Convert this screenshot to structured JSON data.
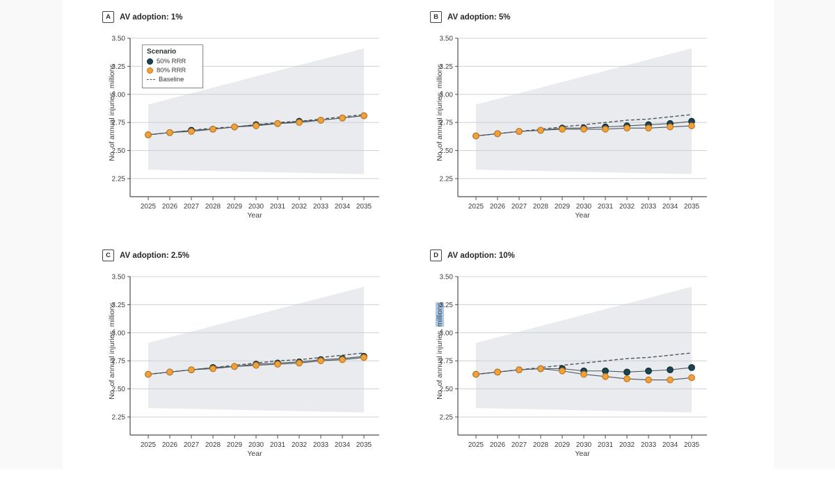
{
  "page": {
    "background": "#ffffff"
  },
  "axis": {
    "xlabel": "Year",
    "ylabel_prefix": "No. of annual injuries, ",
    "ylabel_highlight_word": "millions"
  },
  "legend": {
    "title": "Scenario",
    "items": [
      {
        "label": "50% RRR",
        "marker": "dot-dark"
      },
      {
        "label": "80% RRR",
        "marker": "dot-orange"
      },
      {
        "label": "Baseline",
        "marker": "dashed-line"
      }
    ],
    "position": "top-left of panel A"
  },
  "colors": {
    "rrr50": "#1c4551",
    "rrr50_stroke": "#0e2a33",
    "rrr80": "#f0a13c",
    "rrr80_stroke": "#bf7a22",
    "baseline": "#4c565c",
    "series_line": "#4b565c",
    "band": "#e9ebee",
    "grid": "#ccd1d5",
    "axis": "#4a4d50",
    "text": "#3a3d40",
    "highlight": "#a9c9ea"
  },
  "chart_data": [
    {
      "type": "line",
      "panel_letter": "A",
      "title": "AV adoption: 1%",
      "x": [
        2025,
        2026,
        2027,
        2028,
        2029,
        2030,
        2031,
        2032,
        2033,
        2034,
        2035
      ],
      "y_ticks": [
        "3.50",
        "3.25",
        "3.00",
        "2.75",
        "2.50",
        "2.25"
      ],
      "ylim": [
        2.25,
        3.5
      ],
      "grid": true,
      "highlight_millions": false,
      "band": {
        "top": [
          2.91,
          3.41
        ],
        "bottom": [
          2.33,
          2.29
        ]
      },
      "series": [
        {
          "name": "Baseline",
          "style": "dashed",
          "values": [
            2.64,
            2.66,
            2.68,
            2.7,
            2.71,
            2.73,
            2.75,
            2.76,
            2.78,
            2.8,
            2.82
          ]
        },
        {
          "name": "50% RRR",
          "style": "dot-dark",
          "values": [
            2.64,
            2.66,
            2.68,
            2.69,
            2.71,
            2.73,
            2.74,
            2.76,
            2.77,
            2.79,
            2.81
          ]
        },
        {
          "name": "80% RRR",
          "style": "dot-orange",
          "values": [
            2.64,
            2.66,
            2.67,
            2.69,
            2.71,
            2.72,
            2.74,
            2.75,
            2.77,
            2.79,
            2.81
          ]
        }
      ]
    },
    {
      "type": "line",
      "panel_letter": "B",
      "title": "AV adoption: 5%",
      "x": [
        2025,
        2026,
        2027,
        2028,
        2029,
        2030,
        2031,
        2032,
        2033,
        2034,
        2035
      ],
      "y_ticks": [
        "3.50",
        "3.25",
        "3.00",
        "2.75",
        "2.50",
        "2.25"
      ],
      "ylim": [
        2.25,
        3.5
      ],
      "grid": true,
      "highlight_millions": false,
      "band": {
        "top": [
          2.91,
          3.41
        ],
        "bottom": [
          2.33,
          2.29
        ]
      },
      "series": [
        {
          "name": "Baseline",
          "style": "dashed",
          "values": [
            2.63,
            2.65,
            2.67,
            2.69,
            2.71,
            2.73,
            2.75,
            2.77,
            2.78,
            2.8,
            2.82
          ]
        },
        {
          "name": "50% RRR",
          "style": "dot-dark",
          "values": [
            2.63,
            2.65,
            2.67,
            2.68,
            2.7,
            2.7,
            2.71,
            2.72,
            2.73,
            2.74,
            2.76
          ]
        },
        {
          "name": "80% RRR",
          "style": "dot-orange",
          "values": [
            2.63,
            2.65,
            2.67,
            2.68,
            2.69,
            2.69,
            2.69,
            2.7,
            2.7,
            2.71,
            2.72
          ]
        }
      ]
    },
    {
      "type": "line",
      "panel_letter": "C",
      "title": "AV adoption: 2.5%",
      "x": [
        2025,
        2026,
        2027,
        2028,
        2029,
        2030,
        2031,
        2032,
        2033,
        2034,
        2035
      ],
      "y_ticks": [
        "3.50",
        "3.25",
        "3.00",
        "2.75",
        "2.50",
        "2.25"
      ],
      "ylim": [
        2.25,
        3.5
      ],
      "grid": true,
      "highlight_millions": false,
      "band": {
        "top": [
          2.91,
          3.41
        ],
        "bottom": [
          2.33,
          2.29
        ]
      },
      "series": [
        {
          "name": "Baseline",
          "style": "dashed",
          "values": [
            2.63,
            2.65,
            2.67,
            2.69,
            2.71,
            2.73,
            2.75,
            2.76,
            2.78,
            2.8,
            2.82
          ]
        },
        {
          "name": "50% RRR",
          "style": "dot-dark",
          "values": [
            2.63,
            2.65,
            2.67,
            2.69,
            2.7,
            2.72,
            2.73,
            2.74,
            2.76,
            2.77,
            2.79
          ]
        },
        {
          "name": "80% RRR",
          "style": "dot-orange",
          "values": [
            2.63,
            2.65,
            2.67,
            2.68,
            2.7,
            2.71,
            2.72,
            2.73,
            2.75,
            2.76,
            2.78
          ]
        }
      ]
    },
    {
      "type": "line",
      "panel_letter": "D",
      "title": "AV adoption: 10%",
      "x": [
        2025,
        2026,
        2027,
        2028,
        2029,
        2030,
        2031,
        2032,
        2033,
        2034,
        2035
      ],
      "y_ticks": [
        "3.50",
        "3.25",
        "3.00",
        "2.75",
        "2.50",
        "2.25"
      ],
      "ylim": [
        2.25,
        3.5
      ],
      "grid": true,
      "highlight_millions": true,
      "band": {
        "top": [
          2.91,
          3.41
        ],
        "bottom": [
          2.33,
          2.29
        ]
      },
      "series": [
        {
          "name": "Baseline",
          "style": "dashed",
          "values": [
            2.63,
            2.65,
            2.67,
            2.69,
            2.71,
            2.73,
            2.75,
            2.77,
            2.78,
            2.8,
            2.82
          ]
        },
        {
          "name": "50% RRR",
          "style": "dot-dark",
          "values": [
            2.63,
            2.65,
            2.67,
            2.68,
            2.68,
            2.66,
            2.66,
            2.65,
            2.66,
            2.67,
            2.69
          ]
        },
        {
          "name": "80% RRR",
          "style": "dot-orange",
          "values": [
            2.63,
            2.65,
            2.67,
            2.68,
            2.66,
            2.63,
            2.61,
            2.59,
            2.58,
            2.58,
            2.6
          ]
        }
      ]
    }
  ]
}
